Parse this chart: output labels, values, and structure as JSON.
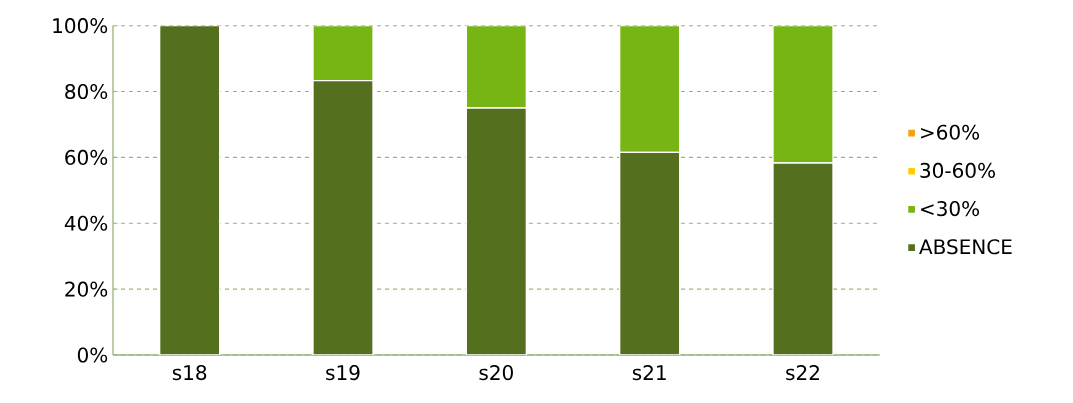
{
  "chart_data": {
    "type": "bar",
    "stacked": true,
    "categories": [
      "s18",
      "s19",
      "s20",
      "s21",
      "s22"
    ],
    "series": [
      {
        "name": "ABSENCE",
        "color": "#546f1e",
        "values": [
          100,
          83.3,
          75,
          61.5,
          58.3
        ]
      },
      {
        "name": "<30%",
        "color": "#76b514",
        "values": [
          0,
          16.7,
          25,
          38.5,
          41.7
        ]
      },
      {
        "name": "30-60%",
        "color": "#ffcc00",
        "values": [
          0,
          0,
          0,
          0,
          0
        ]
      },
      {
        "name": ">60%",
        "color": "#f0a30a",
        "values": [
          0,
          0,
          0,
          0,
          0
        ]
      }
    ],
    "ylim": [
      0,
      100
    ],
    "yticks": [
      {
        "value": 0,
        "label": "0%"
      },
      {
        "value": 20,
        "label": "20%"
      },
      {
        "value": 40,
        "label": "40%"
      },
      {
        "value": 60,
        "label": "60%"
      },
      {
        "value": 80,
        "label": "80%"
      },
      {
        "value": 100,
        "label": "100%"
      }
    ],
    "grid": "y",
    "legend": "right"
  }
}
